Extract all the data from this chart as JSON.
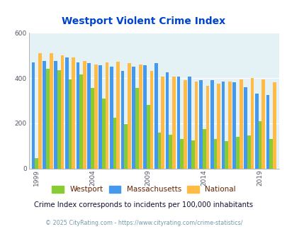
{
  "title": "Westport Violent Crime Index",
  "subtitle": "Crime Index corresponds to incidents per 100,000 inhabitants",
  "footer": "© 2025 CityRating.com - https://www.cityrating.com/crime-statistics/",
  "years": [
    1999,
    2000,
    2001,
    2002,
    2003,
    2004,
    2005,
    2006,
    2007,
    2008,
    2009,
    2010,
    2011,
    2012,
    2013,
    2014,
    2015,
    2016,
    2017,
    2018,
    2019,
    2020
  ],
  "westport": [
    45,
    440,
    435,
    395,
    415,
    355,
    310,
    225,
    195,
    355,
    280,
    160,
    150,
    130,
    125,
    175,
    130,
    120,
    140,
    145,
    210,
    130
  ],
  "massachusetts": [
    470,
    475,
    475,
    490,
    470,
    465,
    455,
    450,
    430,
    450,
    455,
    465,
    425,
    405,
    405,
    390,
    390,
    385,
    380,
    360,
    330,
    325
  ],
  "national": [
    510,
    510,
    500,
    490,
    475,
    460,
    468,
    472,
    465,
    460,
    430,
    405,
    405,
    390,
    385,
    365,
    375,
    385,
    395,
    400,
    395,
    380
  ],
  "xtick_years": [
    1999,
    2004,
    2009,
    2014,
    2019
  ],
  "ylim": [
    0,
    600
  ],
  "yticks": [
    0,
    200,
    400,
    600
  ],
  "bar_width": 0.3,
  "colors": {
    "westport": "#88cc33",
    "massachusetts": "#4499ee",
    "national": "#ffbb44"
  },
  "bg_color": "#e5f2f5",
  "title_color": "#0044cc",
  "subtitle_color": "#111133",
  "footer_color": "#7799aa",
  "legend_label_color": "#662200"
}
